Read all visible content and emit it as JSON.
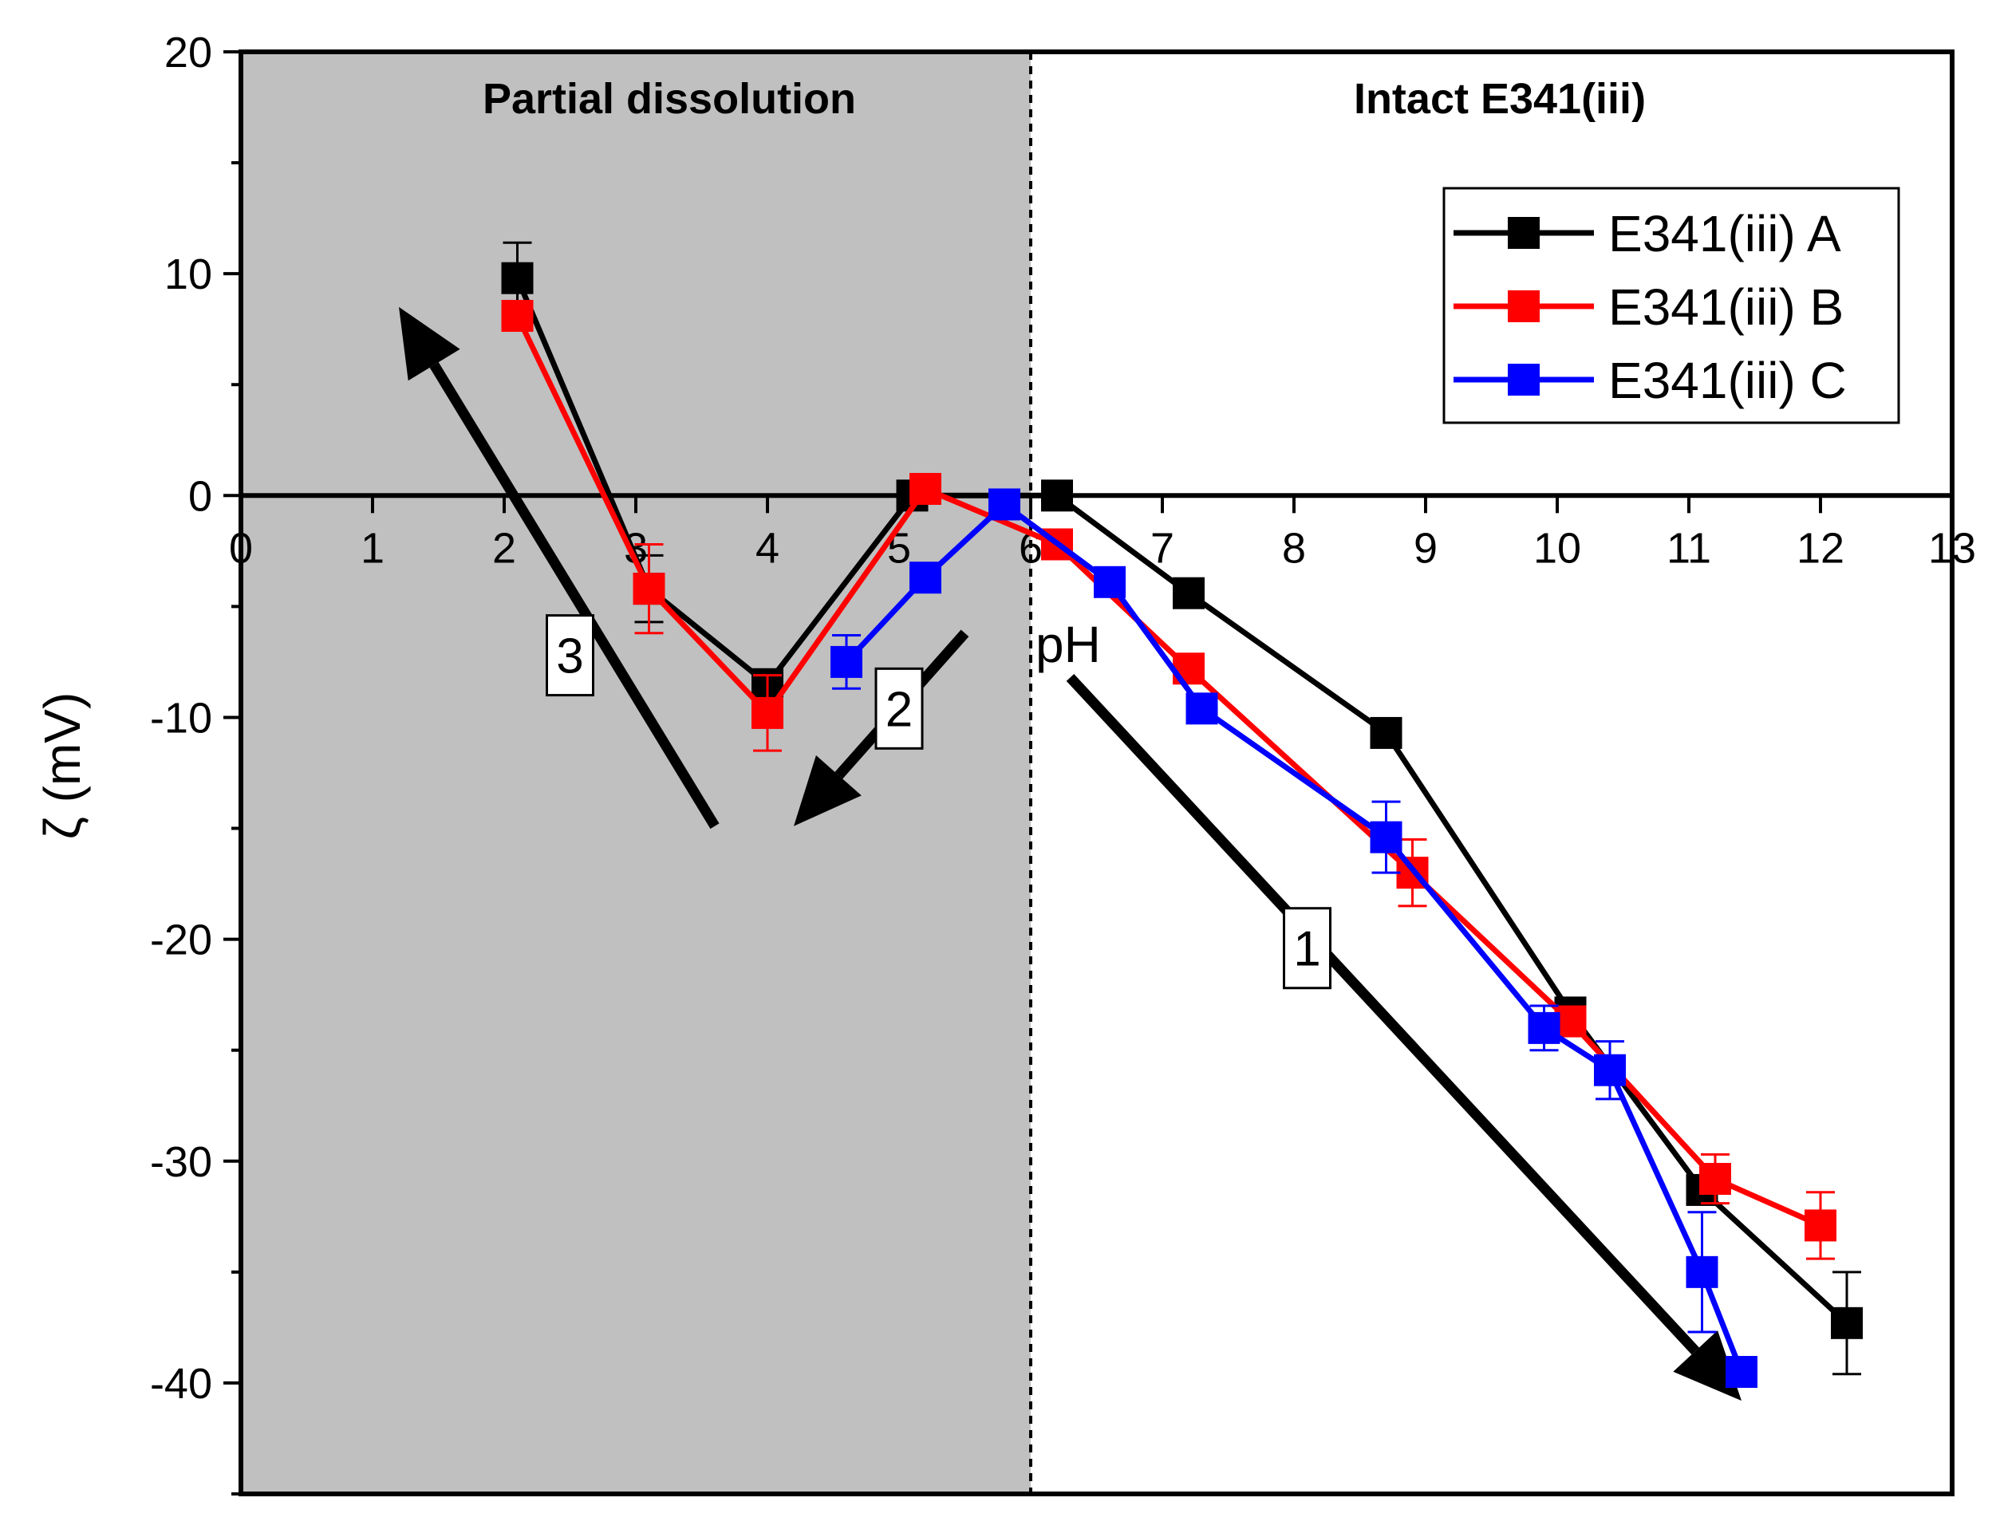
{
  "chart_data": {
    "type": "line",
    "xlabel": "pH",
    "ylabel": "ζ (mV)",
    "xlim": [
      0,
      13
    ],
    "ylim": [
      -45,
      20
    ],
    "x_ticks": [
      0,
      1,
      2,
      3,
      4,
      5,
      6,
      7,
      8,
      9,
      10,
      11,
      12,
      13
    ],
    "x_tick_labels": [
      "0",
      "1",
      "2",
      "3",
      "4",
      "5",
      "6",
      "7",
      "8",
      "9",
      "10",
      "11",
      "12",
      "13"
    ],
    "y_ticks": [
      -40,
      -30,
      -20,
      -10,
      0,
      10,
      20
    ],
    "y_tick_labels": [
      "-40",
      "-30",
      "-20",
      "-10",
      "0",
      "10",
      "20"
    ],
    "grid": false,
    "shaded_region": {
      "x_from": 0,
      "x_to": 6,
      "color": "#c0c0c0",
      "label": "Partial dissolution"
    },
    "right_region_label": "Intact E341(iii)",
    "divider_x": 6,
    "legend_position": "top-right",
    "series": [
      {
        "name": "E341(iii) A",
        "color": "#000000",
        "points": [
          {
            "x": 2.1,
            "y": 9.8,
            "err": 1.6
          },
          {
            "x": 3.1,
            "y": -4.2,
            "err": 1.5
          },
          {
            "x": 4.0,
            "y": -8.5,
            "err": 0.5
          },
          {
            "x": 5.1,
            "y": 0.0,
            "err": 0
          },
          {
            "x": 6.2,
            "y": 0.0,
            "err": 0
          },
          {
            "x": 7.2,
            "y": -4.4,
            "err": 0
          },
          {
            "x": 8.7,
            "y": -10.7,
            "err": 0
          },
          {
            "x": 10.1,
            "y": -23.3,
            "err": 0.6
          },
          {
            "x": 11.1,
            "y": -31.3,
            "err": 0
          },
          {
            "x": 12.2,
            "y": -37.3,
            "err": 2.3
          }
        ]
      },
      {
        "name": "E341(iii) B",
        "color": "#ff0000",
        "points": [
          {
            "x": 2.1,
            "y": 8.1,
            "err": 0
          },
          {
            "x": 3.1,
            "y": -4.2,
            "err": 2.0
          },
          {
            "x": 4.0,
            "y": -9.8,
            "err": 1.7
          },
          {
            "x": 5.2,
            "y": 0.3,
            "err": 0
          },
          {
            "x": 6.2,
            "y": -2.2,
            "err": 0
          },
          {
            "x": 7.2,
            "y": -7.8,
            "err": 0
          },
          {
            "x": 8.9,
            "y": -17.0,
            "err": 1.5
          },
          {
            "x": 10.1,
            "y": -23.7,
            "err": 0
          },
          {
            "x": 11.2,
            "y": -30.8,
            "err": 1.1
          },
          {
            "x": 12.0,
            "y": -32.9,
            "err": 1.5
          }
        ]
      },
      {
        "name": "E341(iii) C",
        "color": "#0000ff",
        "points": [
          {
            "x": 4.6,
            "y": -7.5,
            "err": 1.2
          },
          {
            "x": 5.2,
            "y": -3.7,
            "err": 0
          },
          {
            "x": 5.8,
            "y": -0.4,
            "err": 0
          },
          {
            "x": 6.6,
            "y": -3.9,
            "err": 0
          },
          {
            "x": 7.3,
            "y": -9.6,
            "err": 0
          },
          {
            "x": 8.7,
            "y": -15.4,
            "err": 1.6
          },
          {
            "x": 9.9,
            "y": -24.0,
            "err": 1.0
          },
          {
            "x": 10.4,
            "y": -25.9,
            "err": 1.3
          },
          {
            "x": 11.1,
            "y": -35.0,
            "err": 2.7
          },
          {
            "x": 11.4,
            "y": -39.5,
            "err": 0
          }
        ]
      }
    ],
    "annotations": [
      {
        "label": "1",
        "arrow_from": [
          6.3,
          -8.2
        ],
        "arrow_to": [
          11.4,
          -40.8
        ],
        "label_at": [
          8.1,
          -20.4
        ]
      },
      {
        "label": "2",
        "arrow_from": [
          5.5,
          -6.2
        ],
        "arrow_to": [
          4.2,
          -14.9
        ],
        "label_at": [
          5.0,
          -9.6
        ]
      },
      {
        "label": "3",
        "arrow_from": [
          3.6,
          -14.9
        ],
        "arrow_to": [
          1.2,
          8.5
        ],
        "label_at": [
          2.5,
          -7.2
        ]
      }
    ]
  }
}
